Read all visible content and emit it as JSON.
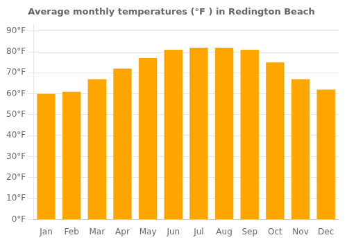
{
  "chart_data": {
    "type": "bar",
    "title": "Average monthly temperatures (°F ) in Redington Beach",
    "categories": [
      "Jan",
      "Feb",
      "Mar",
      "Apr",
      "May",
      "Jun",
      "Jul",
      "Aug",
      "Sep",
      "Oct",
      "Nov",
      "Dec"
    ],
    "values": [
      60,
      61,
      67,
      72,
      77,
      81,
      82,
      82,
      81,
      75,
      67,
      62
    ],
    "color": "#FFA500",
    "ylim": [
      0,
      93
    ],
    "yticks": [
      {
        "value": 0,
        "label": "0°F"
      },
      {
        "value": 10,
        "label": "10°F"
      },
      {
        "value": 20,
        "label": "20°F"
      },
      {
        "value": 30,
        "label": "30°F"
      },
      {
        "value": 40,
        "label": "40°F"
      },
      {
        "value": 50,
        "label": "50°F"
      },
      {
        "value": 60,
        "label": "60°F"
      },
      {
        "value": 70,
        "label": "70°F"
      },
      {
        "value": 80,
        "label": "80°F"
      },
      {
        "value": 90,
        "label": "90°F"
      }
    ],
    "grid": true
  }
}
